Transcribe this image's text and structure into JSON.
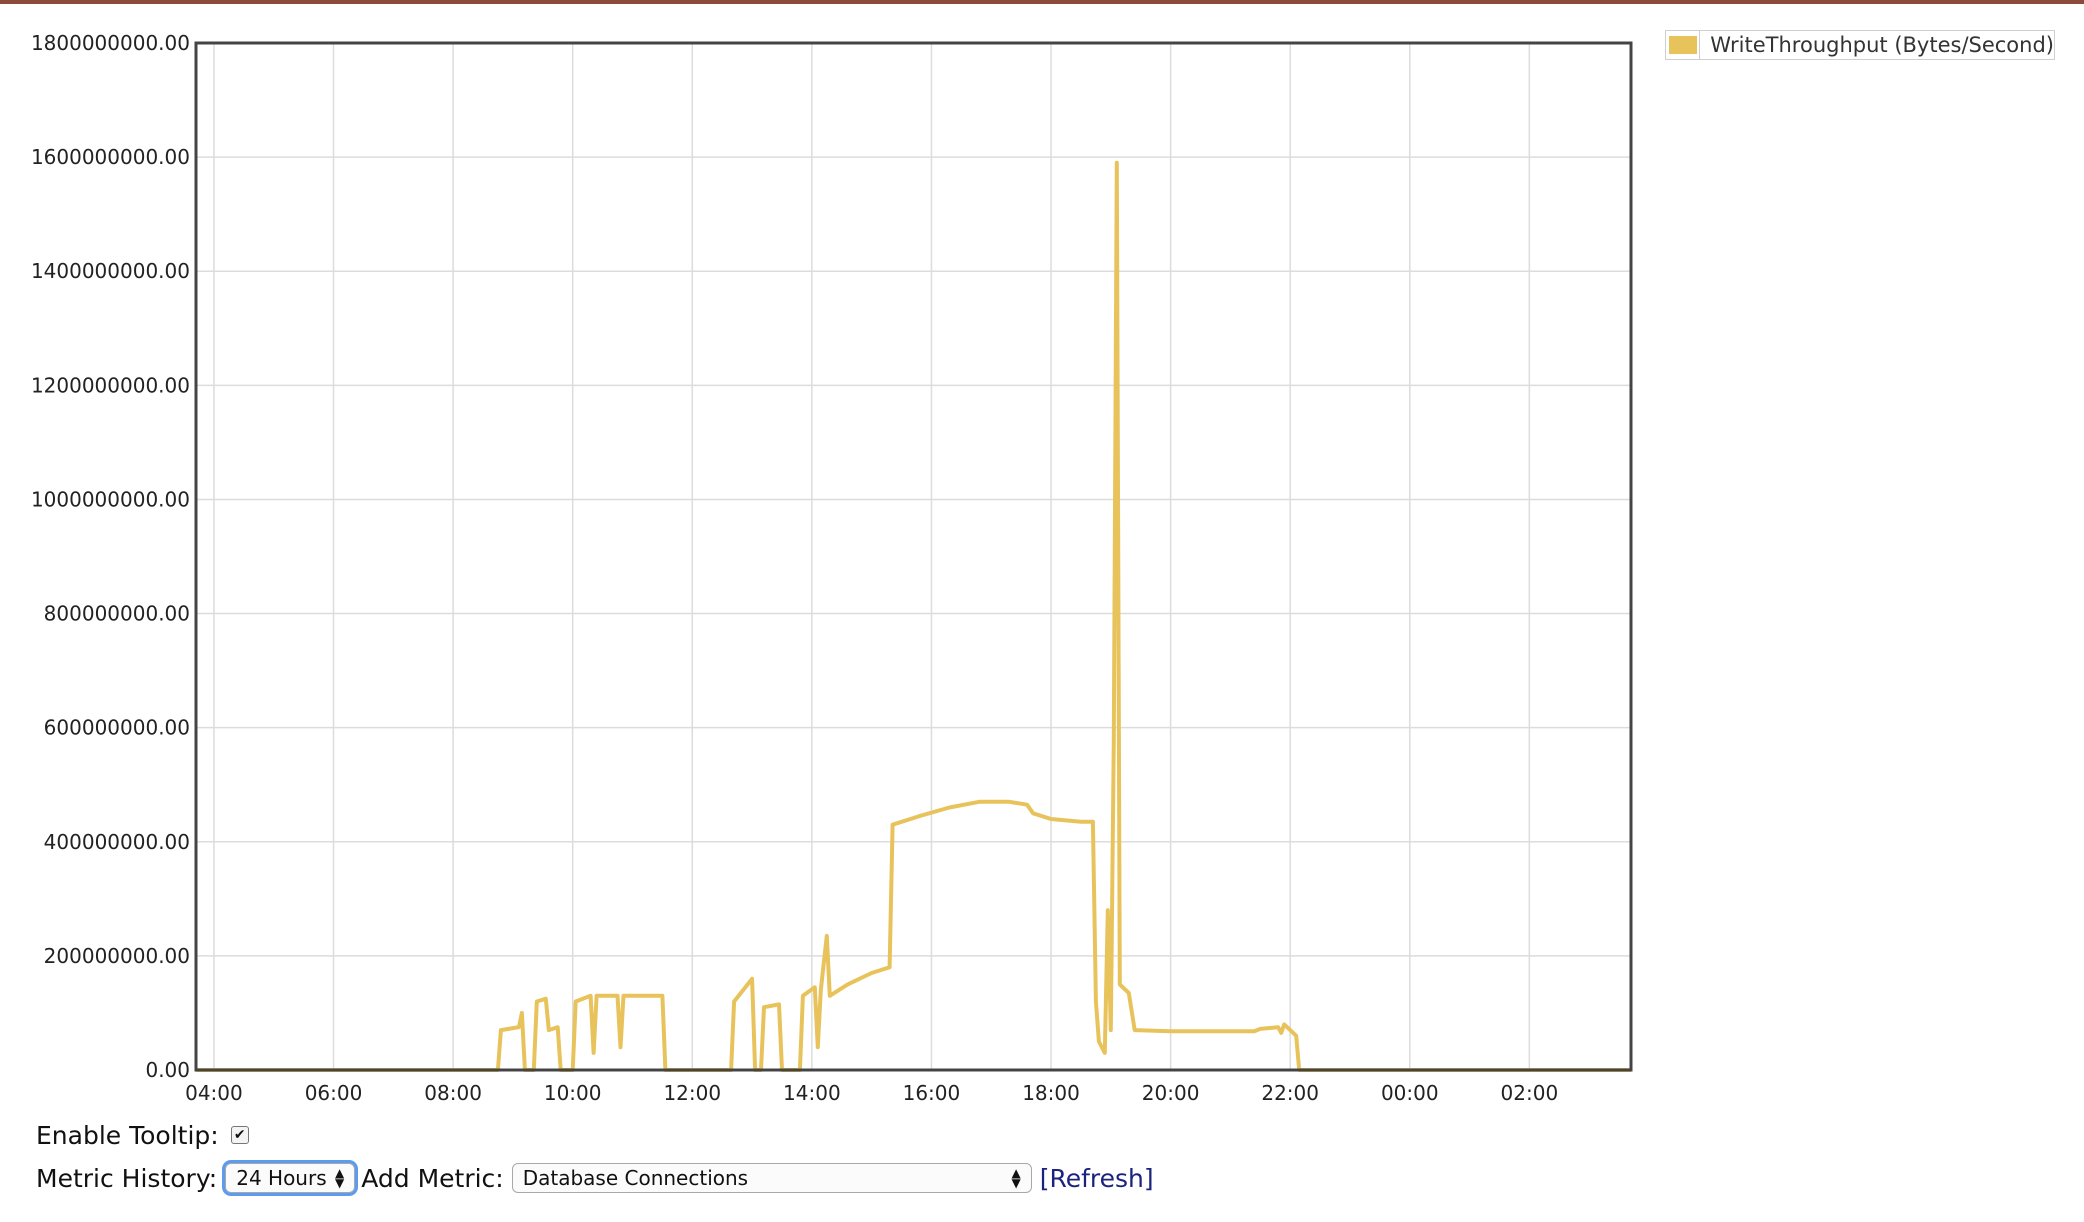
{
  "chart_data": {
    "type": "line",
    "title": "",
    "xlabel": "",
    "ylabel": "",
    "ylim": [
      0,
      1800000000
    ],
    "y_ticks": [
      "0.00",
      "200000000.00",
      "400000000.00",
      "600000000.00",
      "800000000.00",
      "1000000000.00",
      "1200000000.00",
      "1400000000.00",
      "1600000000.00",
      "1800000000.00"
    ],
    "x_ticks": [
      "04:00",
      "06:00",
      "08:00",
      "10:00",
      "12:00",
      "14:00",
      "16:00",
      "18:00",
      "20:00",
      "22:00",
      "00:00",
      "02:00"
    ],
    "x_range_hours": [
      3.7,
      27.7
    ],
    "grid": true,
    "legend_position": "top-right",
    "series": [
      {
        "name": "WriteThroughput (Bytes/Second)",
        "color": "#e8c35c",
        "points": [
          [
            3.7,
            0
          ],
          [
            8.75,
            0
          ],
          [
            8.8,
            70000000
          ],
          [
            9.1,
            75000000
          ],
          [
            9.15,
            100000000
          ],
          [
            9.2,
            0
          ],
          [
            9.35,
            0
          ],
          [
            9.4,
            120000000
          ],
          [
            9.55,
            125000000
          ],
          [
            9.6,
            70000000
          ],
          [
            9.75,
            75000000
          ],
          [
            9.8,
            0
          ],
          [
            10.0,
            0
          ],
          [
            10.05,
            120000000
          ],
          [
            10.3,
            130000000
          ],
          [
            10.35,
            30000000
          ],
          [
            10.4,
            130000000
          ],
          [
            10.75,
            130000000
          ],
          [
            10.8,
            40000000
          ],
          [
            10.85,
            130000000
          ],
          [
            11.5,
            130000000
          ],
          [
            11.55,
            0
          ],
          [
            12.65,
            0
          ],
          [
            12.7,
            120000000
          ],
          [
            13.0,
            160000000
          ],
          [
            13.05,
            0
          ],
          [
            13.15,
            0
          ],
          [
            13.2,
            110000000
          ],
          [
            13.45,
            115000000
          ],
          [
            13.5,
            0
          ],
          [
            13.8,
            0
          ],
          [
            13.85,
            130000000
          ],
          [
            14.05,
            145000000
          ],
          [
            14.1,
            40000000
          ],
          [
            14.15,
            140000000
          ],
          [
            14.25,
            235000000
          ],
          [
            14.3,
            130000000
          ],
          [
            14.6,
            150000000
          ],
          [
            15.0,
            170000000
          ],
          [
            15.3,
            180000000
          ],
          [
            15.35,
            430000000
          ],
          [
            15.8,
            445000000
          ],
          [
            16.3,
            460000000
          ],
          [
            16.8,
            470000000
          ],
          [
            17.3,
            470000000
          ],
          [
            17.6,
            465000000
          ],
          [
            17.7,
            450000000
          ],
          [
            18.0,
            440000000
          ],
          [
            18.5,
            435000000
          ],
          [
            18.7,
            435000000
          ],
          [
            18.75,
            120000000
          ],
          [
            18.8,
            50000000
          ],
          [
            18.9,
            30000000
          ],
          [
            18.95,
            280000000
          ],
          [
            19.0,
            70000000
          ],
          [
            19.05,
            580000000
          ],
          [
            19.1,
            1590000000
          ],
          [
            19.15,
            150000000
          ],
          [
            19.3,
            135000000
          ],
          [
            19.4,
            70000000
          ],
          [
            20.0,
            68000000
          ],
          [
            21.0,
            68000000
          ],
          [
            21.4,
            68000000
          ],
          [
            21.5,
            72000000
          ],
          [
            21.8,
            75000000
          ],
          [
            21.85,
            65000000
          ],
          [
            21.9,
            80000000
          ],
          [
            22.0,
            70000000
          ],
          [
            22.1,
            60000000
          ],
          [
            22.15,
            0
          ],
          [
            27.7,
            0
          ]
        ]
      }
    ]
  },
  "legend": {
    "label": "WriteThroughput (Bytes/Second)",
    "color": "#e8c35c"
  },
  "controls": {
    "tooltip_label": "Enable Tooltip:",
    "tooltip_checked": true,
    "history_label": "Metric History:",
    "history_value": "24 Hours",
    "add_metric_label": "Add Metric:",
    "metric_value": "Database Connections",
    "refresh_label": "[Refresh]"
  }
}
